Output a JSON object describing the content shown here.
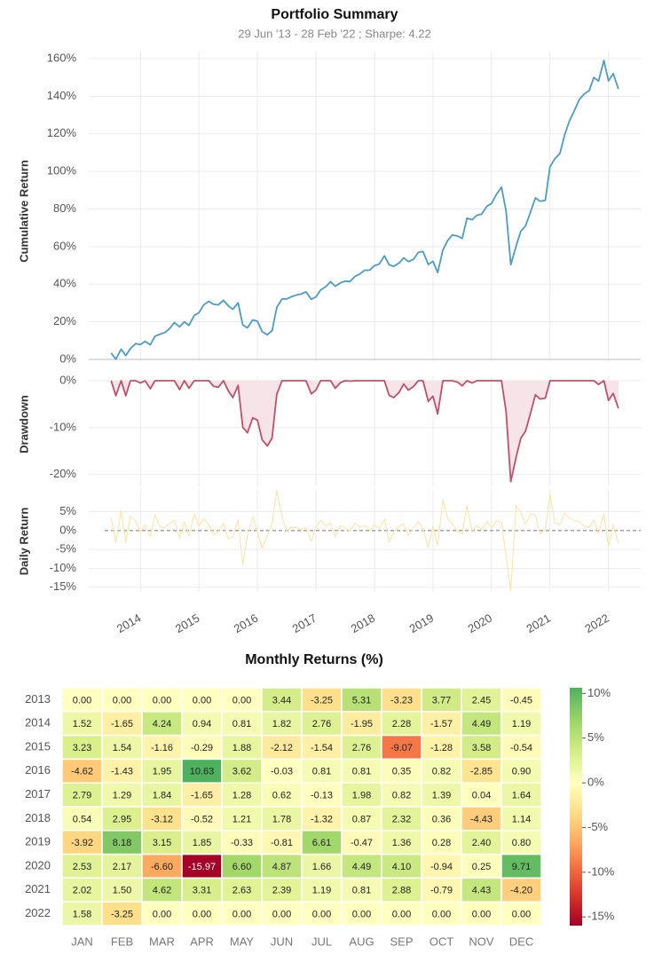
{
  "chart_data": [
    {
      "type": "line",
      "title": "Portfolio Summary",
      "subtitle": "29 Jun '13 - 28 Feb '22 ;  Sharpe: 4.22",
      "xlim": [
        2013.39,
        2022.55
      ],
      "xticks": [
        2014,
        2015,
        2016,
        2017,
        2018,
        2019,
        2020,
        2021,
        2022
      ],
      "grid": true,
      "x": [
        2013.5,
        2013.58,
        2013.67,
        2013.75,
        2013.83,
        2013.92,
        2014,
        2014.08,
        2014.17,
        2014.25,
        2014.33,
        2014.42,
        2014.5,
        2014.58,
        2014.67,
        2014.75,
        2014.83,
        2014.92,
        2015,
        2015.08,
        2015.17,
        2015.25,
        2015.33,
        2015.42,
        2015.5,
        2015.58,
        2015.67,
        2015.75,
        2015.83,
        2015.92,
        2016,
        2016.08,
        2016.17,
        2016.25,
        2016.33,
        2016.42,
        2016.5,
        2016.58,
        2016.67,
        2016.75,
        2016.83,
        2016.92,
        2017,
        2017.08,
        2017.17,
        2017.25,
        2017.33,
        2017.42,
        2017.5,
        2017.58,
        2017.67,
        2017.75,
        2017.83,
        2017.92,
        2018,
        2018.08,
        2018.17,
        2018.25,
        2018.33,
        2018.42,
        2018.5,
        2018.58,
        2018.67,
        2018.75,
        2018.83,
        2018.92,
        2019,
        2019.08,
        2019.17,
        2019.25,
        2019.33,
        2019.42,
        2019.5,
        2019.58,
        2019.67,
        2019.75,
        2019.83,
        2019.92,
        2020,
        2020.08,
        2020.17,
        2020.25,
        2020.33,
        2020.42,
        2020.5,
        2020.58,
        2020.67,
        2020.75,
        2020.83,
        2020.92,
        2021,
        2021.08,
        2021.17,
        2021.25,
        2021.33,
        2021.42,
        2021.5,
        2021.58,
        2021.67,
        2021.75,
        2021.83,
        2021.92,
        2022,
        2022.08,
        2022.17
      ],
      "panels": [
        {
          "type": "line",
          "ylabel": "Cumulative Return",
          "ylim": [
            -1,
            164
          ],
          "yticks": [
            {
              "value": 0,
              "label": "0%"
            },
            {
              "value": 20,
              "label": "20%"
            },
            {
              "value": 40,
              "label": "40%"
            },
            {
              "value": 60,
              "label": "60%"
            },
            {
              "value": 80,
              "label": "80%"
            },
            {
              "value": 100,
              "label": "100%"
            },
            {
              "value": 120,
              "label": "120%"
            },
            {
              "value": 140,
              "label": "140%"
            },
            {
              "value": 160,
              "label": "160%"
            }
          ],
          "series": [
            {
              "color": "#4a9cc9",
              "values": [
                3.4,
                0.1,
                5.4,
                2.0,
                5.8,
                8.4,
                7.9,
                9.6,
                7.8,
                12.3,
                13.4,
                14.3,
                16.4,
                19.6,
                17.3,
                20.0,
                18.1,
                23.4,
                24.8,
                28.9,
                30.9,
                29.3,
                29.0,
                31.4,
                28.6,
                26.6,
                30.1,
                18.3,
                16.8,
                21.0,
                20.3,
                14.8,
                13.1,
                15.3,
                27.6,
                32.2,
                32.2,
                33.3,
                34.3,
                34.8,
                35.9,
                32.0,
                33.2,
                36.9,
                38.7,
                41.3,
                38.9,
                40.7,
                41.6,
                41.4,
                44.2,
                45.4,
                47.4,
                47.5,
                49.9,
                50.7,
                55.1,
                50.3,
                49.5,
                51.3,
                54.0,
                52.0,
                53.3,
                56.9,
                57.4,
                50.5,
                52.2,
                46.2,
                58.2,
                63.2,
                66.2,
                65.6,
                64.3,
                75.1,
                74.3,
                76.7,
                77.2,
                81.4,
                82.9,
                87.5,
                91.6,
                78.9,
                50.4,
                60.3,
                68.1,
                70.9,
                78.6,
                85.9,
                84.1,
                84.6,
                102.5,
                106.6,
                109.7,
                119.4,
                126.7,
                132.6,
                138.2,
                141.0,
                143.0,
                150.0,
                148.0,
                159.0,
                148.1,
                152.0,
                143.8
              ]
            }
          ]
        },
        {
          "type": "area",
          "ylabel": "Drawdown",
          "ylim": [
            -22.5,
            1
          ],
          "yticks": [
            {
              "value": 0,
              "label": "0%"
            },
            {
              "value": -10,
              "label": "-10%"
            },
            {
              "value": -20,
              "label": "-20%"
            }
          ],
          "series": [
            {
              "color": "#c0506a",
              "fill": "#f6e4e9",
              "values": [
                0,
                -3.2,
                0,
                -3.2,
                0,
                0,
                -0.5,
                0,
                -1.7,
                0,
                0,
                0,
                0,
                0,
                -1.9,
                0,
                -1.6,
                0,
                0,
                0,
                0,
                -1.2,
                -1.4,
                0,
                -2.1,
                -3.6,
                -1.0,
                -9.9,
                -11.1,
                -7.9,
                -8.4,
                -12.6,
                -13.9,
                -12.2,
                -2.9,
                0,
                0,
                0,
                0,
                0,
                0,
                -2.8,
                -2.0,
                0,
                0,
                0,
                -1.6,
                -0.4,
                0,
                -0.1,
                0,
                0,
                0,
                0,
                0,
                0,
                0,
                -3.1,
                -3.6,
                -2.5,
                -0.7,
                -2.0,
                -1.2,
                0,
                0,
                -4.4,
                -3.3,
                -7.1,
                0,
                0,
                0,
                -0.3,
                -1.1,
                0,
                -0.5,
                0,
                0,
                0,
                0,
                0,
                0,
                -6.6,
                -21.5,
                -16.3,
                -12.3,
                -10.8,
                -6.8,
                -3.0,
                -3.9,
                -3.7,
                0,
                0,
                0,
                0,
                0,
                0,
                0,
                0,
                0,
                0,
                -0.8,
                0,
                -4.2,
                -2.7,
                -5.9
              ]
            }
          ]
        },
        {
          "type": "line",
          "ylabel": "Daily Return",
          "ylim": [
            -16,
            11
          ],
          "zero_line": true,
          "yticks": [
            {
              "value": 5,
              "label": "5%"
            },
            {
              "value": 0,
              "label": "0%"
            },
            {
              "value": -5,
              "label": "-5%"
            },
            {
              "value": -10,
              "label": "-10%"
            },
            {
              "value": -15,
              "label": "-15%"
            }
          ],
          "series": [
            {
              "color": "#fde3a0",
              "values": [
                3.44,
                -3.25,
                5.31,
                -3.23,
                3.77,
                2.45,
                -0.45,
                1.52,
                -1.65,
                4.24,
                0.94,
                0.81,
                1.82,
                2.76,
                -1.95,
                2.28,
                -1.57,
                4.49,
                1.19,
                3.23,
                1.54,
                -1.16,
                -0.29,
                1.88,
                -2.12,
                -1.54,
                2.76,
                -9.07,
                -1.28,
                3.58,
                -0.54,
                -4.62,
                -1.43,
                1.95,
                10.63,
                3.62,
                -0.03,
                0.81,
                0.81,
                0.35,
                0.82,
                -2.85,
                0.9,
                2.79,
                1.29,
                1.84,
                -1.65,
                1.28,
                0.62,
                -0.13,
                1.98,
                0.82,
                1.39,
                0.04,
                1.64,
                0.54,
                2.95,
                -3.12,
                -0.52,
                1.21,
                1.78,
                -1.32,
                0.87,
                2.32,
                0.36,
                -4.43,
                1.14,
                -3.92,
                8.18,
                3.15,
                1.85,
                -0.33,
                -0.81,
                6.61,
                -0.47,
                1.36,
                0.28,
                2.4,
                0.8,
                2.53,
                2.17,
                -6.6,
                -15.97,
                6.6,
                4.87,
                1.66,
                4.49,
                4.1,
                -0.94,
                0.25,
                9.71,
                2.02,
                1.5,
                4.62,
                3.31,
                2.63,
                2.39,
                1.19,
                0.81,
                2.88,
                -0.79,
                4.43,
                -4.2,
                1.58,
                -3.25
              ]
            }
          ]
        }
      ]
    },
    {
      "type": "heatmap",
      "title": "Monthly Returns (%)",
      "rows": [
        "2013",
        "2014",
        "2015",
        "2016",
        "2017",
        "2018",
        "2019",
        "2020",
        "2021",
        "2022"
      ],
      "columns": [
        "JAN",
        "FEB",
        "MAR",
        "APR",
        "MAY",
        "JUN",
        "JUL",
        "AUG",
        "SEP",
        "OCT",
        "NOV",
        "DEC"
      ],
      "clim": [
        -15.97,
        10.63
      ],
      "colormap": [
        "#a50026",
        "#d73027",
        "#f46d43",
        "#fdae61",
        "#fee08b",
        "#ffffbf",
        "#d9ef8b",
        "#a6d96a",
        "#66bd63",
        "#1a9850",
        "#006837"
      ],
      "cticks": [
        {
          "value": 10,
          "label": "10%"
        },
        {
          "value": 5,
          "label": "5%"
        },
        {
          "value": 0,
          "label": "0%"
        },
        {
          "value": -5,
          "label": "-5%"
        },
        {
          "value": -10,
          "label": "-10%"
        },
        {
          "value": -15,
          "label": "-15%"
        }
      ],
      "values": [
        [
          0,
          0,
          0,
          0,
          0,
          3.44,
          -3.25,
          5.31,
          -3.23,
          3.77,
          2.45,
          -0.45
        ],
        [
          1.52,
          -1.65,
          4.24,
          0.94,
          0.81,
          1.82,
          2.76,
          -1.95,
          2.28,
          -1.57,
          4.49,
          1.19
        ],
        [
          3.23,
          1.54,
          -1.16,
          -0.29,
          1.88,
          -2.12,
          -1.54,
          2.76,
          -9.07,
          -1.28,
          3.58,
          -0.54
        ],
        [
          -4.62,
          -1.43,
          1.95,
          10.63,
          3.62,
          -0.03,
          0.81,
          0.81,
          0.35,
          0.82,
          -2.85,
          0.9
        ],
        [
          2.79,
          1.29,
          1.84,
          -1.65,
          1.28,
          0.62,
          -0.13,
          1.98,
          0.82,
          1.39,
          0.04,
          1.64
        ],
        [
          0.54,
          2.95,
          -3.12,
          -0.52,
          1.21,
          1.78,
          -1.32,
          0.87,
          2.32,
          0.36,
          -4.43,
          1.14
        ],
        [
          -3.92,
          8.18,
          3.15,
          1.85,
          -0.33,
          -0.81,
          6.61,
          -0.47,
          1.36,
          0.28,
          2.4,
          0.8
        ],
        [
          2.53,
          2.17,
          -6.6,
          -15.97,
          6.6,
          4.87,
          1.66,
          4.49,
          4.1,
          -0.94,
          0.25,
          9.71
        ],
        [
          2.02,
          1.5,
          4.62,
          3.31,
          2.63,
          2.39,
          1.19,
          0.81,
          2.88,
          -0.79,
          4.43,
          -4.2
        ],
        [
          1.58,
          -3.25,
          0,
          0,
          0,
          0,
          0,
          0,
          0,
          0,
          0,
          0
        ]
      ],
      "value_labels": [
        [
          "0.00",
          "0.00",
          "0.00",
          "0.00",
          "0.00",
          "3.44",
          "-3.25",
          "5.31",
          "-3.23",
          "3.77",
          "2.45",
          "-0.45"
        ],
        [
          "1.52",
          "-1.65",
          "4.24",
          "0.94",
          "0.81",
          "1.82",
          "2.76",
          "-1.95",
          "2.28",
          "-1.57",
          "4.49",
          "1.19"
        ],
        [
          "3.23",
          "1.54",
          "-1.16",
          "-0.29",
          "1.88",
          "-2.12",
          "-1.54",
          "2.76",
          "-9.07",
          "-1.28",
          "3.58",
          "-0.54"
        ],
        [
          "-4.62",
          "-1.43",
          "1.95",
          "10.63",
          "3.62",
          "-0.03",
          "0.81",
          "0.81",
          "0.35",
          "0.82",
          "-2.85",
          "0.90"
        ],
        [
          "2.79",
          "1.29",
          "1.84",
          "-1.65",
          "1.28",
          "0.62",
          "-0.13",
          "1.98",
          "0.82",
          "1.39",
          "0.04",
          "1.64"
        ],
        [
          "0.54",
          "2.95",
          "-3.12",
          "-0.52",
          "1.21",
          "1.78",
          "-1.32",
          "0.87",
          "2.32",
          "0.36",
          "-4.43",
          "1.14"
        ],
        [
          "-3.92",
          "8.18",
          "3.15",
          "1.85",
          "-0.33",
          "-0.81",
          "6.61",
          "-0.47",
          "1.36",
          "0.28",
          "2.40",
          "0.80"
        ],
        [
          "2.53",
          "2.17",
          "-6.60",
          "-15.97",
          "6.60",
          "4.87",
          "1.66",
          "4.49",
          "4.10",
          "-0.94",
          "0.25",
          "9.71"
        ],
        [
          "2.02",
          "1.50",
          "4.62",
          "3.31",
          "2.63",
          "2.39",
          "1.19",
          "0.81",
          "2.88",
          "-0.79",
          "4.43",
          "-4.20"
        ],
        [
          "1.58",
          "-3.25",
          "0.00",
          "0.00",
          "0.00",
          "0.00",
          "0.00",
          "0.00",
          "0.00",
          "0.00",
          "0.00",
          "0.00"
        ]
      ]
    }
  ]
}
